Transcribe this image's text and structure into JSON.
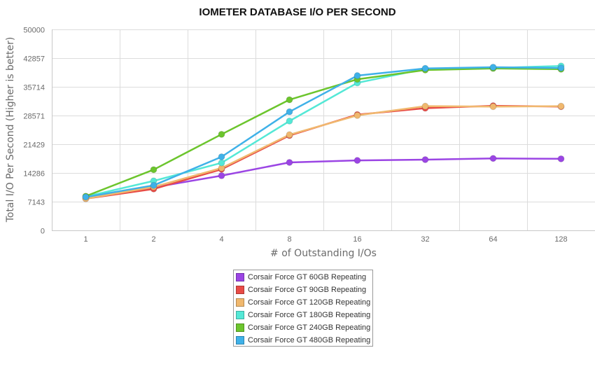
{
  "chart_data": {
    "type": "line",
    "title": "IOMETER DATABASE I/O PER SECOND",
    "xlabel": "# of Outstanding I/Os",
    "ylabel": "Total I/O Per Second (Higher is better)",
    "categories": [
      "1",
      "2",
      "4",
      "8",
      "16",
      "32",
      "64",
      "128"
    ],
    "yticks": [
      "0",
      "7143",
      "14286",
      "21429",
      "28571",
      "35714",
      "42857",
      "50000"
    ],
    "ylim": [
      0,
      50000
    ],
    "grid": true,
    "legend_position": "bottom",
    "series": [
      {
        "name": "Corsair Force GT 60GB Repeating",
        "color": "#9b45e4",
        "values": [
          8200,
          10700,
          13600,
          16900,
          17400,
          17600,
          17900,
          17800
        ]
      },
      {
        "name": "Corsair Force GT 90GB Repeating",
        "color": "#e84b46",
        "values": [
          7900,
          10300,
          15200,
          23600,
          28800,
          30400,
          31000,
          30800
        ]
      },
      {
        "name": "Corsair Force GT 120GB Repeating",
        "color": "#f0b86e",
        "values": [
          7900,
          10800,
          15500,
          23800,
          28600,
          30900,
          30800,
          30900
        ]
      },
      {
        "name": "Corsair Force GT 180GB Repeating",
        "color": "#54e8d6",
        "values": [
          8400,
          12300,
          16800,
          27200,
          36700,
          40200,
          40400,
          40900
        ]
      },
      {
        "name": "Corsair Force GT 240GB Repeating",
        "color": "#6cc52d",
        "values": [
          8500,
          15100,
          23900,
          32500,
          37600,
          39900,
          40300,
          40100
        ]
      },
      {
        "name": "Corsair Force GT 480GB Repeating",
        "color": "#3fb1e8",
        "values": [
          8300,
          11200,
          18300,
          29500,
          38500,
          40300,
          40600,
          40400
        ]
      }
    ]
  }
}
